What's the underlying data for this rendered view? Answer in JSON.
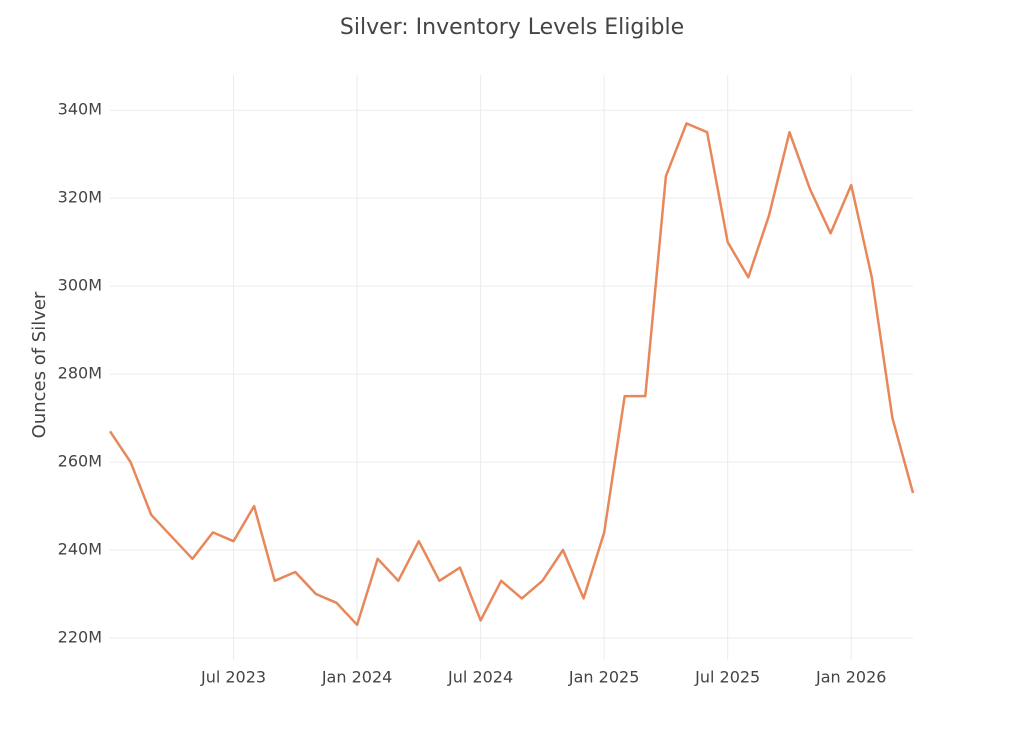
{
  "chart_data": {
    "type": "line",
    "title": "Silver: Inventory Levels Eligible",
    "y_label": "Ounces of Silver",
    "x": [
      "2023-01",
      "2023-02",
      "2023-03",
      "2023-04",
      "2023-05",
      "2023-06",
      "2023-07",
      "2023-08",
      "2023-09",
      "2023-10",
      "2023-11",
      "2023-12",
      "2024-01",
      "2024-02",
      "2024-03",
      "2024-04",
      "2024-05",
      "2024-06",
      "2024-07",
      "2024-08",
      "2024-09",
      "2024-10",
      "2024-11",
      "2024-12",
      "2025-01",
      "2025-02",
      "2025-03",
      "2025-04",
      "2025-05",
      "2025-06",
      "2025-07",
      "2025-08",
      "2025-09",
      "2025-10",
      "2025-11",
      "2025-12",
      "2026-01",
      "2026-02",
      "2026-03",
      "2026-04"
    ],
    "series": [
      {
        "name": "Eligible",
        "color": "#e8875a",
        "values": [
          267,
          260,
          248,
          243,
          238,
          244,
          242,
          250,
          233,
          235,
          230,
          228,
          223,
          238,
          233,
          242,
          233,
          236,
          224,
          233,
          229,
          233,
          240,
          229,
          244,
          275,
          275,
          325,
          337,
          335,
          310,
          302,
          316,
          335,
          322,
          312,
          323,
          302,
          270,
          253
        ]
      }
    ],
    "xlim": [
      "2023-01",
      "2026-04"
    ],
    "xticks": [
      {
        "value": "2023-07",
        "label": "Jul 2023"
      },
      {
        "value": "2024-01",
        "label": "Jan 2024"
      },
      {
        "value": "2024-07",
        "label": "Jul 2024"
      },
      {
        "value": "2025-01",
        "label": "Jan 2025"
      },
      {
        "value": "2025-07",
        "label": "Jul 2025"
      },
      {
        "value": "2026-01",
        "label": "Jan 2026"
      }
    ],
    "ylim": [
      215,
      348
    ],
    "yticks": [
      {
        "value": 220,
        "label": "220M"
      },
      {
        "value": 240,
        "label": "240M"
      },
      {
        "value": 260,
        "label": "260M"
      },
      {
        "value": 280,
        "label": "280M"
      },
      {
        "value": 300,
        "label": "300M"
      },
      {
        "value": 320,
        "label": "320M"
      },
      {
        "value": 340,
        "label": "340M"
      }
    ],
    "grid": true
  }
}
